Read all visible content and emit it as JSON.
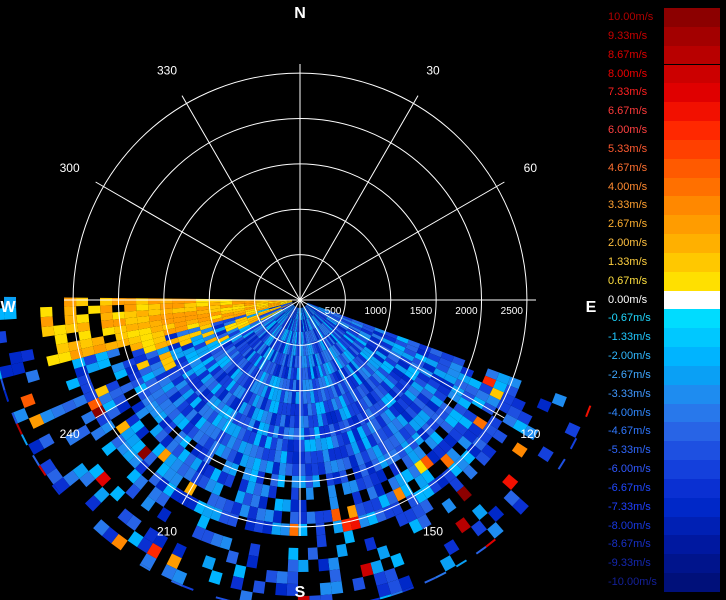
{
  "chart_data": {
    "type": "heatmap",
    "subtype": "polar radar radial-velocity sector scan",
    "compass": {
      "N": "N",
      "E": "E",
      "S": "S",
      "W": "W"
    },
    "azimuth_labels": [
      "30",
      "60",
      "120",
      "150",
      "210",
      "240",
      "300",
      "330"
    ],
    "azimuth_degrees": [
      30,
      60,
      120,
      150,
      210,
      240,
      300,
      330
    ],
    "range_ticks": [
      "500",
      "1000",
      "1500",
      "2000",
      "2500"
    ],
    "range_values": [
      500,
      1000,
      1500,
      2000,
      2500
    ],
    "range_max": 2600,
    "grid": true,
    "scan_sector_degrees": [
      110,
      270
    ],
    "colorbar": {
      "placement": "right",
      "labels": [
        "10.00m/s",
        "9.33m/s",
        "8.67m/s",
        "8.00m/s",
        "7.33m/s",
        "6.67m/s",
        "6.00m/s",
        "5.33m/s",
        "4.67m/s",
        "4.00m/s",
        "3.33m/s",
        "2.67m/s",
        "2.00m/s",
        "1.33m/s",
        "0.67m/s",
        "0.00m/s",
        "-0.67m/s",
        "-1.33m/s",
        "-2.00m/s",
        "-2.67m/s",
        "-3.33m/s",
        "-4.00m/s",
        "-4.67m/s",
        "-5.33m/s",
        "-6.00m/s",
        "-6.67m/s",
        "-7.33m/s",
        "-8.00m/s",
        "-8.67m/s",
        "-9.33m/s",
        "-10.00m/s"
      ],
      "colors": [
        "#8c0000",
        "#a30000",
        "#b80000",
        "#cc0000",
        "#e00000",
        "#f21000",
        "#ff2800",
        "#ff4000",
        "#ff5a00",
        "#ff7000",
        "#ff8800",
        "#ff9c00",
        "#ffb000",
        "#ffc800",
        "#ffe000",
        "#ffffff",
        "#00dcff",
        "#00c8ff",
        "#00b4ff",
        "#0aa0f5",
        "#1e8cf0",
        "#2878eb",
        "#2864e6",
        "#1e50e1",
        "#1440dc",
        "#0a30d2",
        "#0028c8",
        "#0020b4",
        "#0018a0",
        "#00148c",
        "#00107a"
      ],
      "label_colors": [
        "#b00000",
        "#c80000",
        "#dc0000",
        "#ee0000",
        "#ff2020",
        "#ff3a3a",
        "#ff4040",
        "#ff5a30",
        "#ff7030",
        "#ff8a30",
        "#ffa030",
        "#ffb030",
        "#ffc040",
        "#ffd040",
        "#ffe040",
        "#ffffff",
        "#20d8ff",
        "#20c8ff",
        "#30b8ff",
        "#40a8ff",
        "#4098ff",
        "#3088ff",
        "#3078ff",
        "#3068ff",
        "#3058ff",
        "#2048ff",
        "#2040ff",
        "#1838e0",
        "#1830c8",
        "#1428b0",
        "#142098"
      ]
    }
  }
}
